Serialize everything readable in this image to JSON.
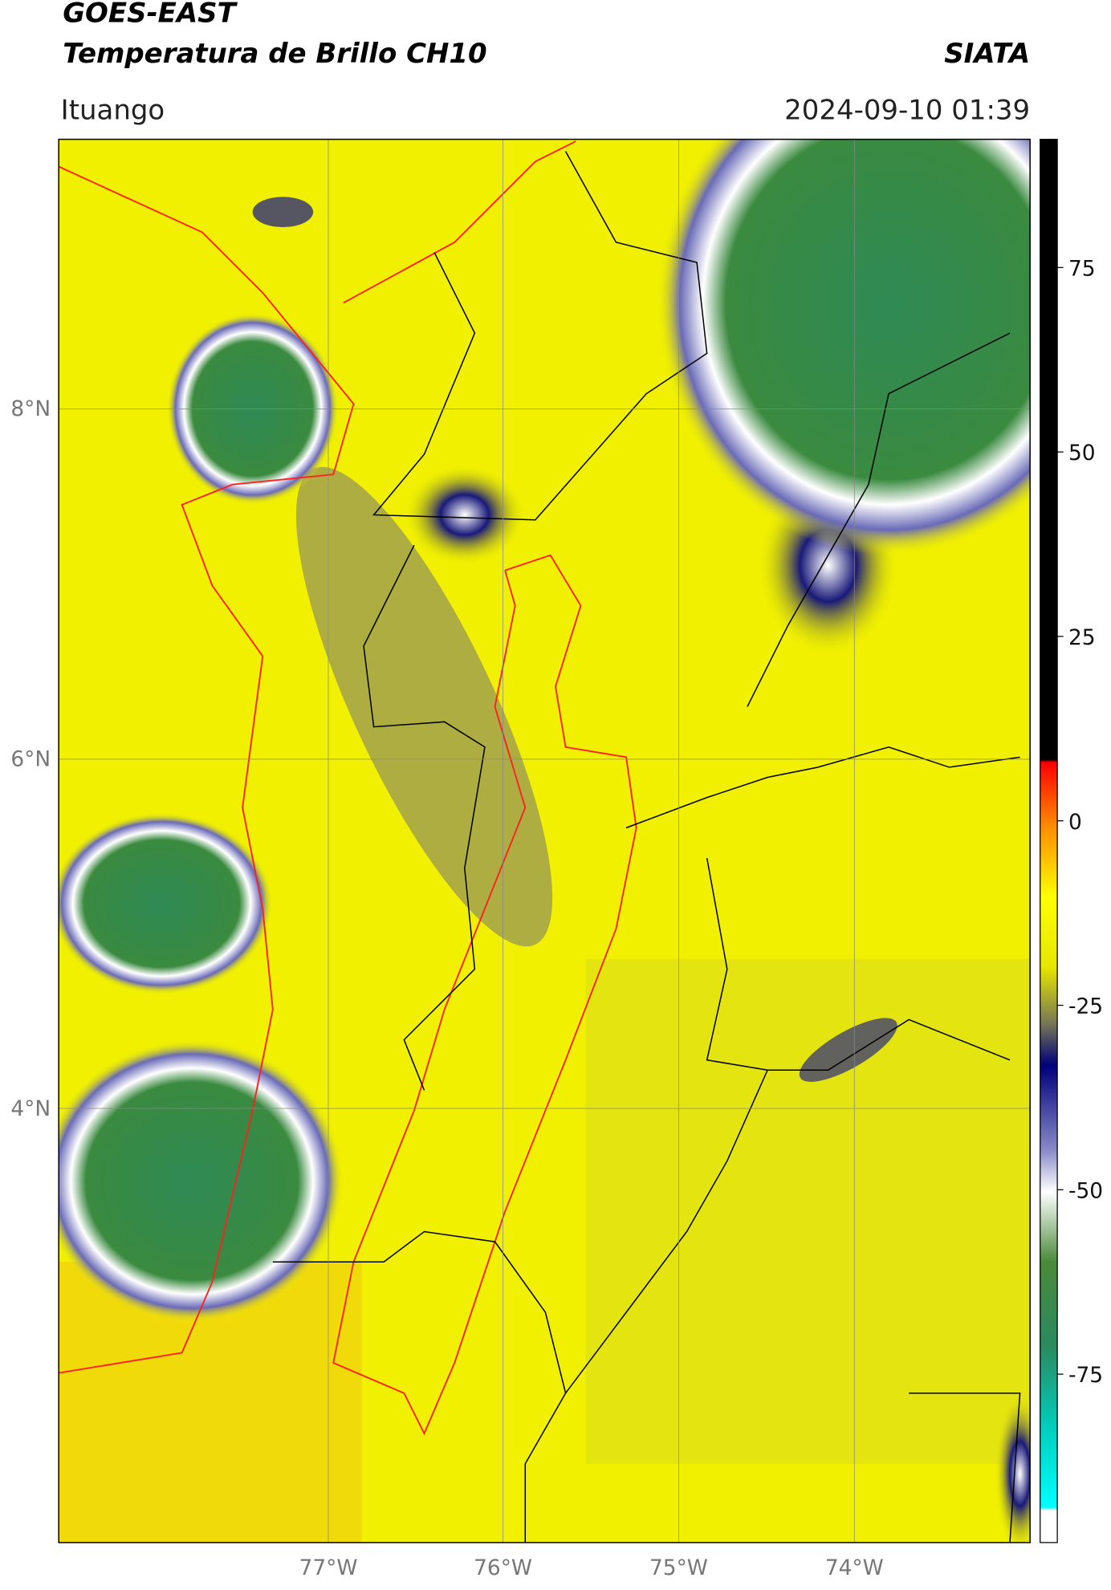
{
  "header": {
    "title_line1": "GOES-EAST",
    "title_line2": "Temperatura de Brillo CH10",
    "brand": "SIATA",
    "location": "Ituango",
    "timestamp": "2024-09-10 01:39"
  },
  "map": {
    "lat_labels": [
      "8°N",
      "6°N",
      "4°N"
    ],
    "lon_labels": [
      "77°W",
      "76°W",
      "75°W",
      "74°W"
    ]
  },
  "colorbar": {
    "tick_labels": [
      "75",
      "50",
      "25",
      "0",
      "-25",
      "-50",
      "-75"
    ]
  }
}
